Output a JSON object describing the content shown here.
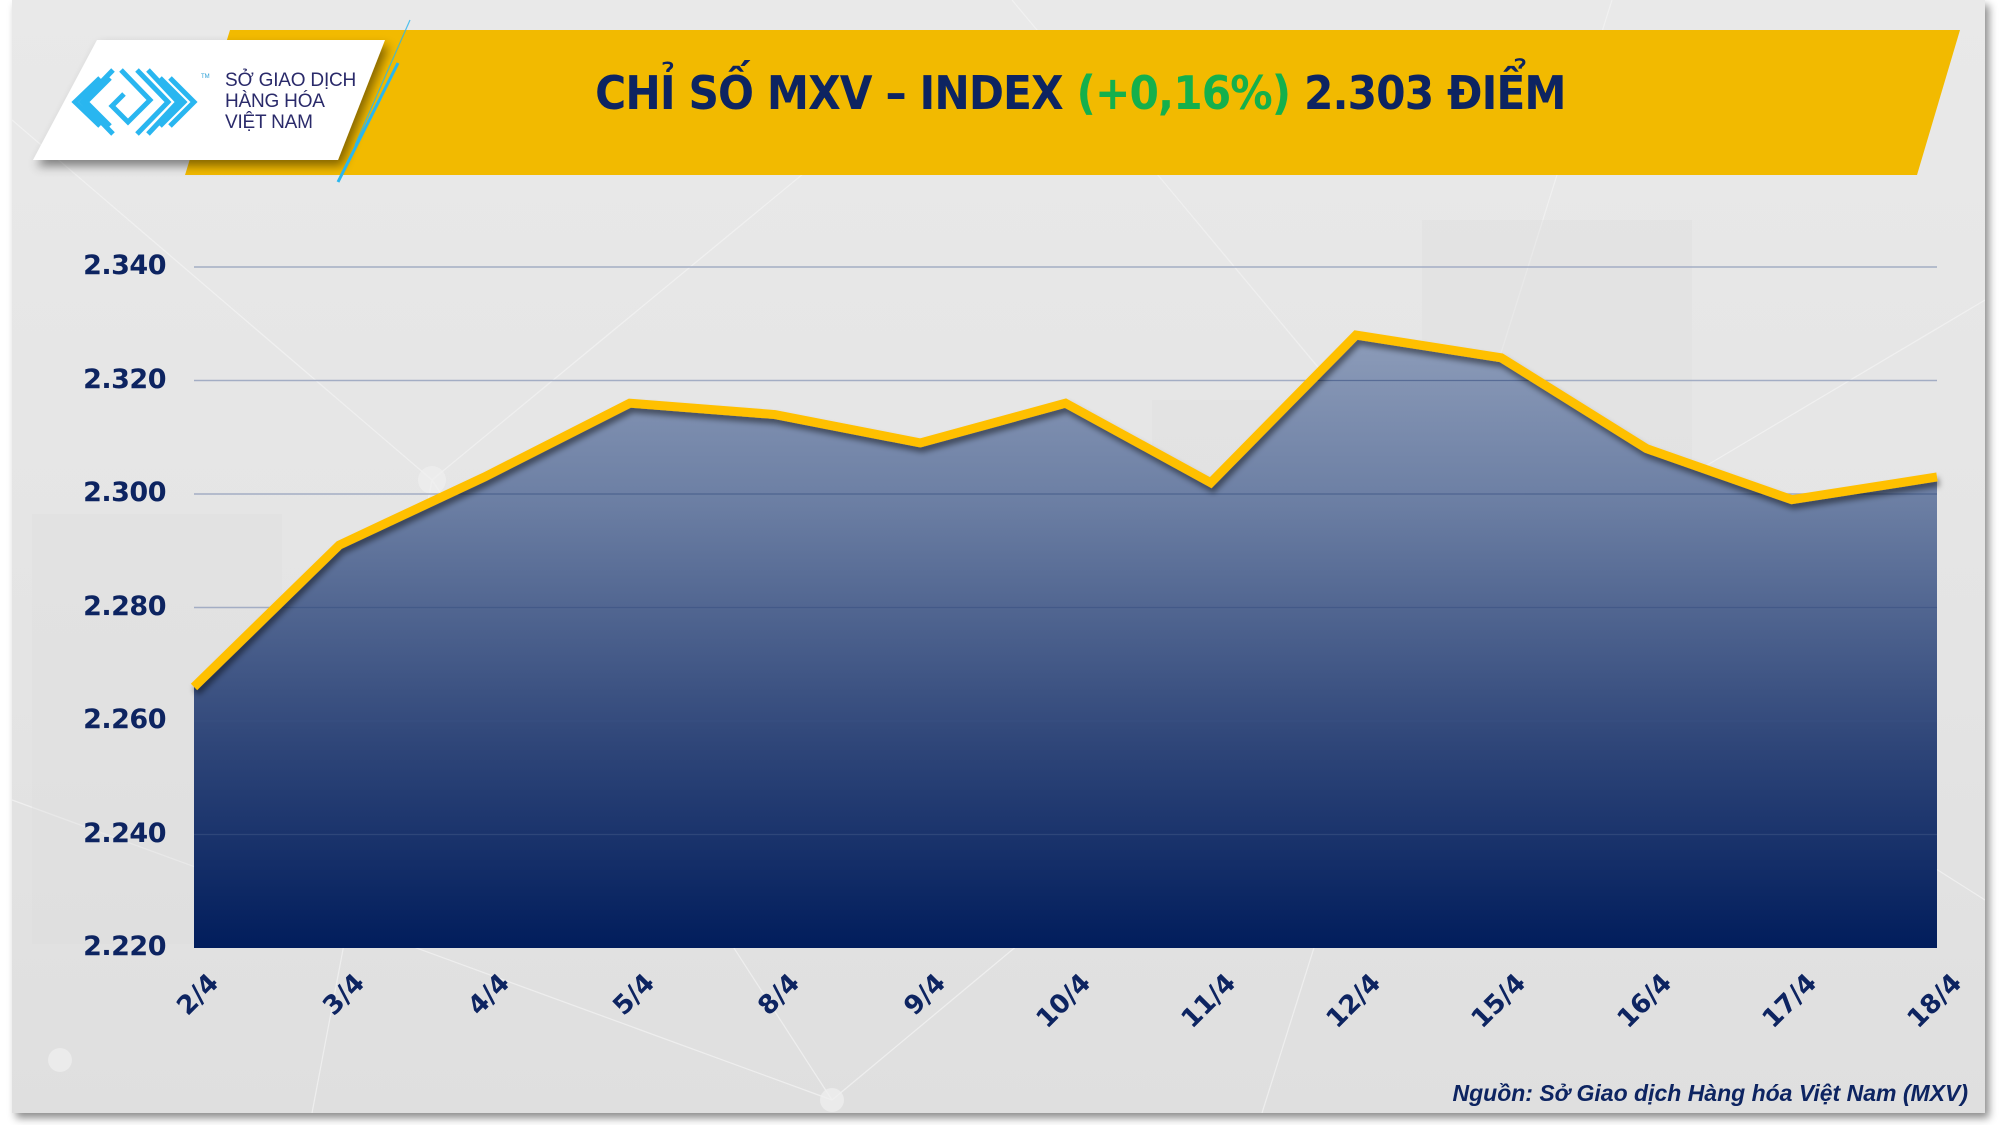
{
  "logo": {
    "line1": "SỞ GIAO DỊCH",
    "line2": "HÀNG HÓA",
    "line3": "VIỆT NAM",
    "tm": "TM"
  },
  "header": {
    "title_prefix": "CHỈ SỐ MXV – INDEX ",
    "title_change": "(+0,16%)",
    "title_suffix": " 2.303 ĐIỂM"
  },
  "colors": {
    "banner_yellow": "#F2BA00",
    "title_navy": "#0D2461",
    "change_green": "#14B04C",
    "line_yellow": "#FFC000",
    "area_top": "#9aa8c2",
    "area_bottom": "#011d5c",
    "logo_blue": "#29B6F0"
  },
  "source": "Nguồn: Sở Giao dịch Hàng hóa Việt Nam (MXV)",
  "chart_data": {
    "type": "area",
    "title": "CHỈ SỐ MXV – INDEX (+0,16%) 2.303 ĐIỂM",
    "xlabel": "",
    "ylabel": "",
    "categories": [
      "2/4",
      "3/4",
      "4/4",
      "5/4",
      "8/4",
      "9/4",
      "10/4",
      "11/4",
      "12/4",
      "15/4",
      "16/4",
      "17/4",
      "18/4"
    ],
    "values": [
      2266,
      2291,
      2303,
      2316,
      2314,
      2309,
      2316,
      2302,
      2328,
      2324,
      2308,
      2299,
      2303
    ],
    "ylim": [
      2220,
      2340
    ],
    "yticks": [
      2220,
      2240,
      2260,
      2280,
      2300,
      2320,
      2340
    ],
    "ytick_labels": [
      "2.220",
      "2.240",
      "2.260",
      "2.280",
      "2.300",
      "2.320",
      "2.340"
    ],
    "grid": true,
    "legend": null,
    "annotations": [
      "Nguồn: Sở Giao dịch Hàng hóa Việt Nam (MXV)"
    ]
  }
}
